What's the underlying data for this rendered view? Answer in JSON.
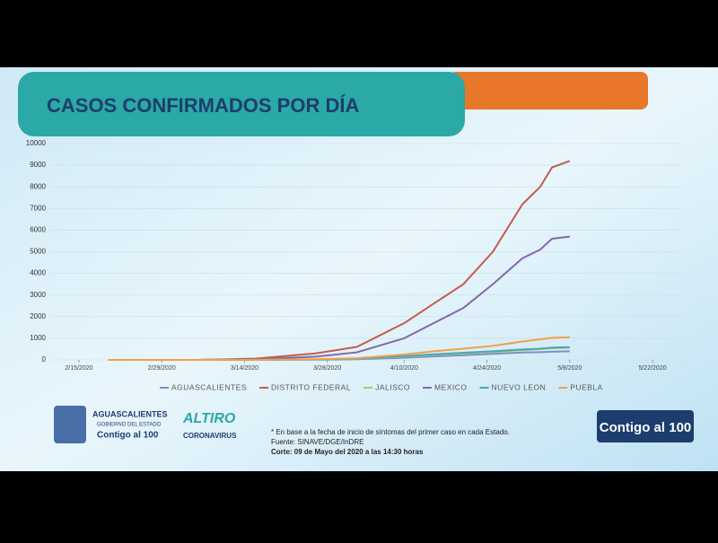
{
  "chart_data": {
    "type": "line",
    "title": "CASOS CONFIRMADOS POR DÍA",
    "x": [
      5,
      20,
      30,
      40,
      47,
      55,
      60,
      65,
      70,
      75,
      78,
      80,
      83
    ],
    "xlim": [
      -5,
      102
    ],
    "xticks": [
      {
        "value": 0,
        "label": "2/15/2020"
      },
      {
        "value": 14,
        "label": "2/29/2020"
      },
      {
        "value": 28,
        "label": "3/14/2020"
      },
      {
        "value": 42,
        "label": "3/28/2020"
      },
      {
        "value": 55,
        "label": "4/10/2020"
      },
      {
        "value": 69,
        "label": "4/24/2020"
      },
      {
        "value": 83,
        "label": "5/8/2020"
      },
      {
        "value": 97,
        "label": "5/22/2020"
      }
    ],
    "ylim": [
      0,
      10000
    ],
    "yticks": [
      0,
      1000,
      2000,
      3000,
      4000,
      5000,
      6000,
      7000,
      8000,
      9000,
      10000
    ],
    "grid": true,
    "series": [
      {
        "name": "AGUASCALIENTES",
        "color": "#7b8fc4",
        "values": [
          0,
          0,
          2,
          10,
          30,
          100,
          160,
          220,
          280,
          340,
          360,
          380,
          400
        ]
      },
      {
        "name": "DISTRITO FEDERAL",
        "color": "#c55a4c",
        "values": [
          0,
          0,
          60,
          300,
          600,
          1700,
          2600,
          3500,
          5000,
          7200,
          8000,
          8900,
          9200
        ]
      },
      {
        "name": "JALISCO",
        "color": "#a9c96a",
        "values": [
          0,
          0,
          5,
          20,
          50,
          150,
          230,
          300,
          370,
          450,
          500,
          540,
          560
        ]
      },
      {
        "name": "MEXICO",
        "color": "#8468a8",
        "values": [
          0,
          0,
          30,
          150,
          350,
          1000,
          1700,
          2400,
          3500,
          4700,
          5100,
          5600,
          5700
        ]
      },
      {
        "name": "NUEVO LEON",
        "color": "#4aa6b8",
        "values": [
          0,
          0,
          5,
          25,
          60,
          170,
          260,
          330,
          400,
          480,
          520,
          570,
          590
        ]
      },
      {
        "name": "PUEBLA",
        "color": "#f0a04b",
        "values": [
          0,
          0,
          5,
          30,
          80,
          250,
          400,
          520,
          650,
          850,
          950,
          1020,
          1050
        ]
      }
    ]
  },
  "notes": [
    "* En base a la fecha de inicio de síntomas del primer caso en cada Estado.",
    "Fuente: SINAVE/DGE/InDRE",
    "Corte: 09 de Mayo del 2020 a las 14:30 horas"
  ],
  "logos": {
    "state": "AGUASCALIENTES",
    "government": "GOBIERNO DEL ESTADO",
    "slogan": "Contigo al 100",
    "campaign": "ALTIRO",
    "campaign_sub": "CORONAVIRUS",
    "badge": "Contigo al 100"
  }
}
